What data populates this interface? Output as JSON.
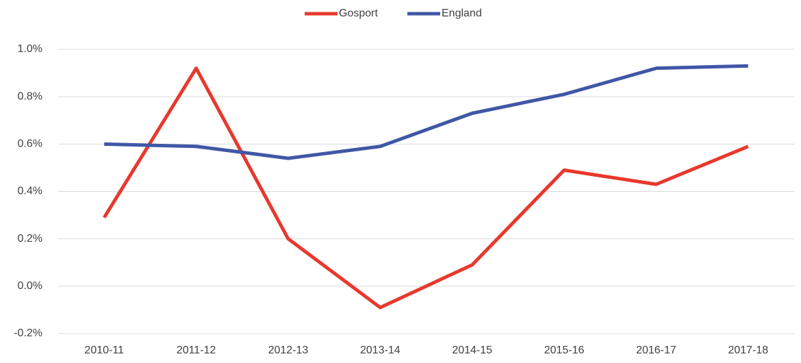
{
  "chart_data": {
    "type": "line",
    "categories": [
      "2010-11",
      "2011-12",
      "2012-13",
      "2013-14",
      "2014-15",
      "2015-16",
      "2016-17",
      "2017-18"
    ],
    "series": [
      {
        "name": "Gosport",
        "color": "#e8382d",
        "values": [
          0.29,
          0.92,
          0.2,
          -0.09,
          0.09,
          0.49,
          0.43,
          0.59
        ]
      },
      {
        "name": "England",
        "color": "#3f57a6",
        "values": [
          0.6,
          0.59,
          0.54,
          0.59,
          0.73,
          0.81,
          0.92,
          0.93
        ]
      }
    ],
    "ylim": [
      -0.2,
      1.0
    ],
    "yticks": [
      {
        "value": -0.2,
        "label": "-0.2%"
      },
      {
        "value": 0.0,
        "label": "0.0%"
      },
      {
        "value": 0.2,
        "label": "0.2%"
      },
      {
        "value": 0.4,
        "label": "0.4%"
      },
      {
        "value": 0.6,
        "label": "0.6%"
      },
      {
        "value": 0.8,
        "label": "0.8%"
      },
      {
        "value": 1.0,
        "label": "1.0%"
      }
    ],
    "grid": true,
    "legend": "top"
  }
}
